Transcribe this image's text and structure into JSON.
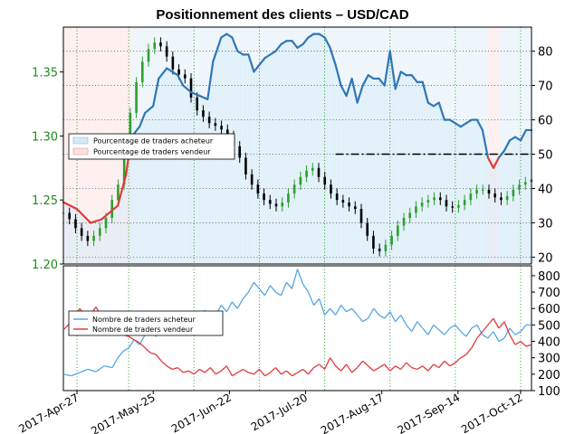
{
  "title": "Positionnement des clients – USD/CAD",
  "colors": {
    "price_axis": "#1e8c1e",
    "long_line": "#2f77b5",
    "short_line": "#e03b3b",
    "long_fill": "#d4e9f7",
    "short_fill": "#fde0de",
    "up_candle": "#2ca02c",
    "down_candle": "#000000"
  },
  "chart_data": [
    {
      "type": "line",
      "panel": "top",
      "x_ticks": [
        "2017-Apr-27",
        "2017-May-25",
        "2017-Jun-22",
        "2017-Jul-20",
        "2017-Aug-17",
        "2017-Sep-14",
        "2017-Oct-12"
      ],
      "left_axis": {
        "ticks": [
          "1.20",
          "1.25",
          "1.30",
          "1.35"
        ],
        "ylim": [
          1.2,
          1.385
        ]
      },
      "right_axis": {
        "ticks": [
          "20",
          "30",
          "40",
          "50",
          "60",
          "70",
          "80"
        ],
        "ylim": [
          18,
          87
        ]
      },
      "reference_line": 50,
      "legend": [
        "Pourcentage de traders acheteur",
        "Pourcentage de traders vendeur"
      ],
      "series": [
        {
          "name": "Pourcentage de traders acheteur",
          "axis": "right",
          "x": [
            0,
            5,
            10,
            14,
            17,
            20,
            23,
            25,
            28,
            30,
            33,
            35,
            38,
            40,
            42,
            44,
            47,
            50,
            53,
            55,
            58,
            60,
            62,
            64,
            66,
            68,
            70,
            72,
            74,
            76,
            78,
            80,
            82,
            84,
            86,
            88,
            90,
            92,
            94,
            96,
            98,
            100,
            102,
            104,
            106,
            108,
            110,
            112,
            114,
            116,
            118,
            120,
            122,
            124,
            126,
            128,
            130,
            132,
            134,
            136,
            138,
            140,
            142,
            144,
            146,
            148,
            150,
            152,
            154,
            156,
            158,
            160,
            162,
            164,
            166,
            168,
            170,
            172
          ],
          "values": [
            36,
            34,
            30,
            31,
            33,
            35,
            44,
            55,
            58,
            62,
            64,
            72,
            75,
            74,
            73,
            70,
            68,
            67,
            66,
            77,
            84,
            85,
            84,
            80,
            79,
            79,
            74,
            76,
            78,
            79,
            80,
            82,
            83,
            83,
            81,
            82,
            84,
            85,
            85,
            84,
            81,
            76,
            70,
            67,
            72,
            65,
            70,
            73,
            72,
            72,
            70,
            80,
            69,
            74,
            73,
            73,
            71,
            71,
            65,
            64,
            65,
            60,
            60,
            59,
            58,
            59,
            60,
            60,
            57,
            49,
            46,
            49,
            51,
            54,
            55,
            54,
            57,
            57
          ]
        }
      ],
      "price_close": [
        1.24,
        1.235,
        1.228,
        1.222,
        1.218,
        1.222,
        1.228,
        1.236,
        1.25,
        1.262,
        1.29,
        1.318,
        1.342,
        1.358,
        1.368,
        1.373,
        1.37,
        1.362,
        1.352,
        1.348,
        1.345,
        1.33,
        1.32,
        1.315,
        1.31,
        1.308,
        1.305,
        1.3,
        1.292,
        1.283,
        1.27,
        1.262,
        1.255,
        1.25,
        1.247,
        1.245,
        1.248,
        1.255,
        1.262,
        1.268,
        1.273,
        1.275,
        1.268,
        1.262,
        1.255,
        1.25,
        1.248,
        1.245,
        1.243,
        1.232,
        1.222,
        1.212,
        1.21,
        1.215,
        1.222,
        1.23,
        1.236,
        1.24,
        1.245,
        1.248,
        1.25,
        1.252,
        1.25,
        1.245,
        1.244,
        1.246,
        1.25,
        1.255,
        1.258,
        1.258,
        1.255,
        1.252,
        1.25,
        1.253,
        1.258,
        1.262,
        1.264,
        1.266
      ]
    },
    {
      "type": "line",
      "panel": "bottom",
      "x_ticks": [
        "2017-Apr-27",
        "2017-May-25",
        "2017-Jun-22",
        "2017-Jul-20",
        "2017-Aug-17",
        "2017-Sep-14",
        "2017-Oct-12"
      ],
      "right_axis": {
        "ticks": [
          "100",
          "200",
          "300",
          "400",
          "500",
          "600",
          "700",
          "800"
        ],
        "ylim": [
          100,
          860
        ]
      },
      "legend": [
        "Nombre de traders acheteur",
        "Nombre de traders vendeur"
      ],
      "series": [
        {
          "name": "Nombre de traders acheteur",
          "x": [
            0,
            3,
            6,
            9,
            12,
            15,
            18,
            20,
            22,
            24,
            26,
            28,
            30,
            32,
            34,
            36,
            38,
            40,
            42,
            44,
            46,
            48,
            50,
            52,
            54,
            56,
            58,
            60,
            62,
            64,
            66,
            68,
            70,
            72,
            74,
            76,
            78,
            80,
            82,
            84,
            86,
            88,
            90,
            92,
            94,
            96,
            98,
            100,
            102,
            104,
            106,
            108,
            110,
            112,
            114,
            116,
            118,
            120,
            122,
            124,
            126,
            128,
            130,
            132,
            134,
            136,
            138,
            140,
            142,
            144,
            146,
            148,
            150,
            152,
            154,
            156,
            158,
            160,
            162,
            164,
            166,
            168,
            170,
            172
          ],
          "values": [
            200,
            190,
            210,
            230,
            215,
            250,
            240,
            300,
            340,
            360,
            410,
            380,
            440,
            470,
            430,
            480,
            500,
            520,
            490,
            540,
            560,
            510,
            530,
            590,
            500,
            560,
            620,
            580,
            640,
            600,
            660,
            700,
            760,
            720,
            680,
            740,
            700,
            680,
            760,
            720,
            840,
            750,
            700,
            620,
            660,
            560,
            600,
            560,
            620,
            580,
            600,
            560,
            520,
            540,
            600,
            560,
            540,
            580,
            520,
            560,
            500,
            460,
            520,
            480,
            440,
            500,
            470,
            440,
            480,
            500,
            460,
            430,
            480,
            500,
            440,
            420,
            460,
            400,
            420,
            480,
            440,
            460,
            500,
            500
          ]
        },
        {
          "name": "Nombre de traders vendeur",
          "x": [
            0,
            3,
            6,
            9,
            12,
            15,
            18,
            20,
            22,
            24,
            26,
            28,
            30,
            32,
            34,
            36,
            38,
            40,
            42,
            44,
            46,
            48,
            50,
            52,
            54,
            56,
            58,
            60,
            62,
            64,
            66,
            68,
            70,
            72,
            74,
            76,
            78,
            80,
            82,
            84,
            86,
            88,
            90,
            92,
            94,
            96,
            98,
            100,
            102,
            104,
            106,
            108,
            110,
            112,
            114,
            116,
            118,
            120,
            122,
            124,
            126,
            128,
            130,
            132,
            134,
            136,
            138,
            140,
            142,
            144,
            146,
            148,
            150,
            152,
            154,
            156,
            158,
            160,
            162,
            164,
            166,
            168,
            170,
            172
          ],
          "values": [
            470,
            520,
            600,
            540,
            610,
            520,
            560,
            480,
            440,
            430,
            410,
            390,
            360,
            330,
            320,
            280,
            250,
            230,
            240,
            210,
            220,
            200,
            230,
            210,
            240,
            200,
            220,
            250,
            190,
            210,
            230,
            210,
            200,
            230,
            190,
            210,
            240,
            200,
            220,
            190,
            210,
            230,
            200,
            240,
            260,
            230,
            300,
            250,
            220,
            260,
            210,
            240,
            280,
            250,
            220,
            240,
            260,
            220,
            250,
            230,
            270,
            240,
            230,
            250,
            220,
            260,
            240,
            280,
            250,
            270,
            300,
            320,
            360,
            420,
            460,
            500,
            540,
            480,
            520,
            440,
            380,
            400,
            370,
            380
          ]
        }
      ]
    }
  ]
}
